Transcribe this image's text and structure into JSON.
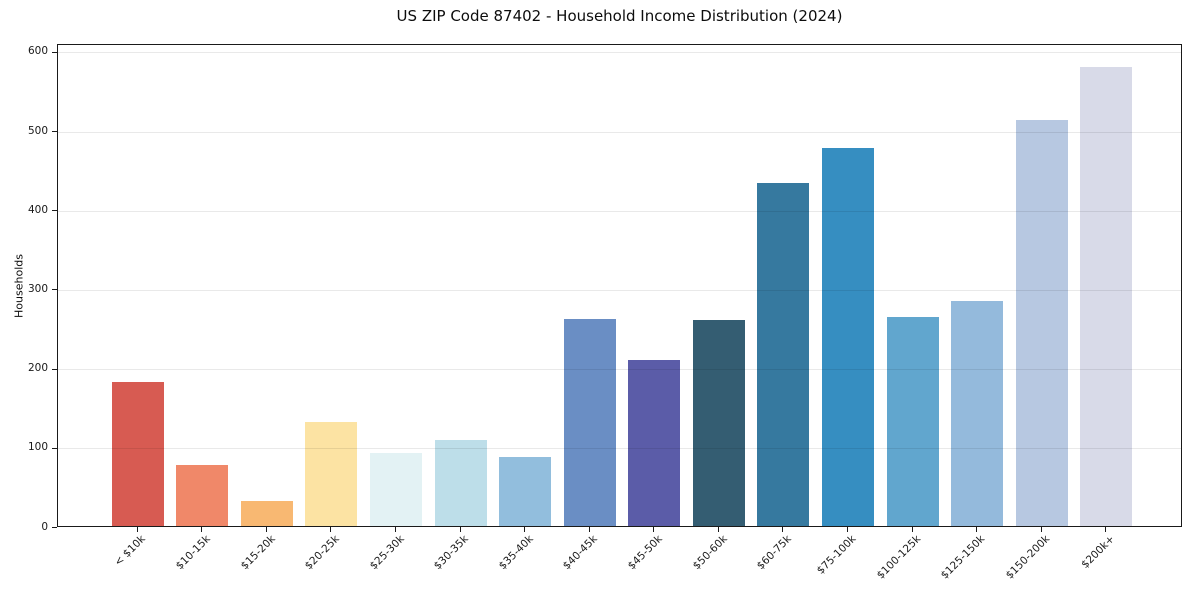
{
  "chart_data": {
    "type": "bar",
    "title": "US ZIP Code 87402 - Household Income Distribution (2024)",
    "xlabel": "",
    "ylabel": "Households",
    "categories": [
      "< $10k",
      "$10-15k",
      "$15-20k",
      "$20-25k",
      "$25-30k",
      "$30-35k",
      "$35-40k",
      "$40-45k",
      "$45-50k",
      "$50-60k",
      "$60-75k",
      "$75-100k",
      "$100-125k",
      "$125-150k",
      "$150-200k",
      "$200k+"
    ],
    "values": [
      182,
      77,
      32,
      131,
      92,
      109,
      87,
      262,
      209,
      260,
      433,
      477,
      264,
      284,
      513,
      579
    ],
    "bar_colors": [
      "#d75b52",
      "#f08869",
      "#f8b872",
      "#fce3a3",
      "#e3f2f4",
      "#bddee9",
      "#92bedd",
      "#6a8ec4",
      "#5b5ca8",
      "#345d72",
      "#36799f",
      "#368ec1",
      "#61a6ce",
      "#94badc",
      "#b7c8e1",
      "#d8dae8"
    ],
    "ylim": [
      0,
      600
    ],
    "yticks": [
      0,
      100,
      200,
      300,
      400,
      500,
      600
    ],
    "grid": "horizontal",
    "legend": "none"
  }
}
